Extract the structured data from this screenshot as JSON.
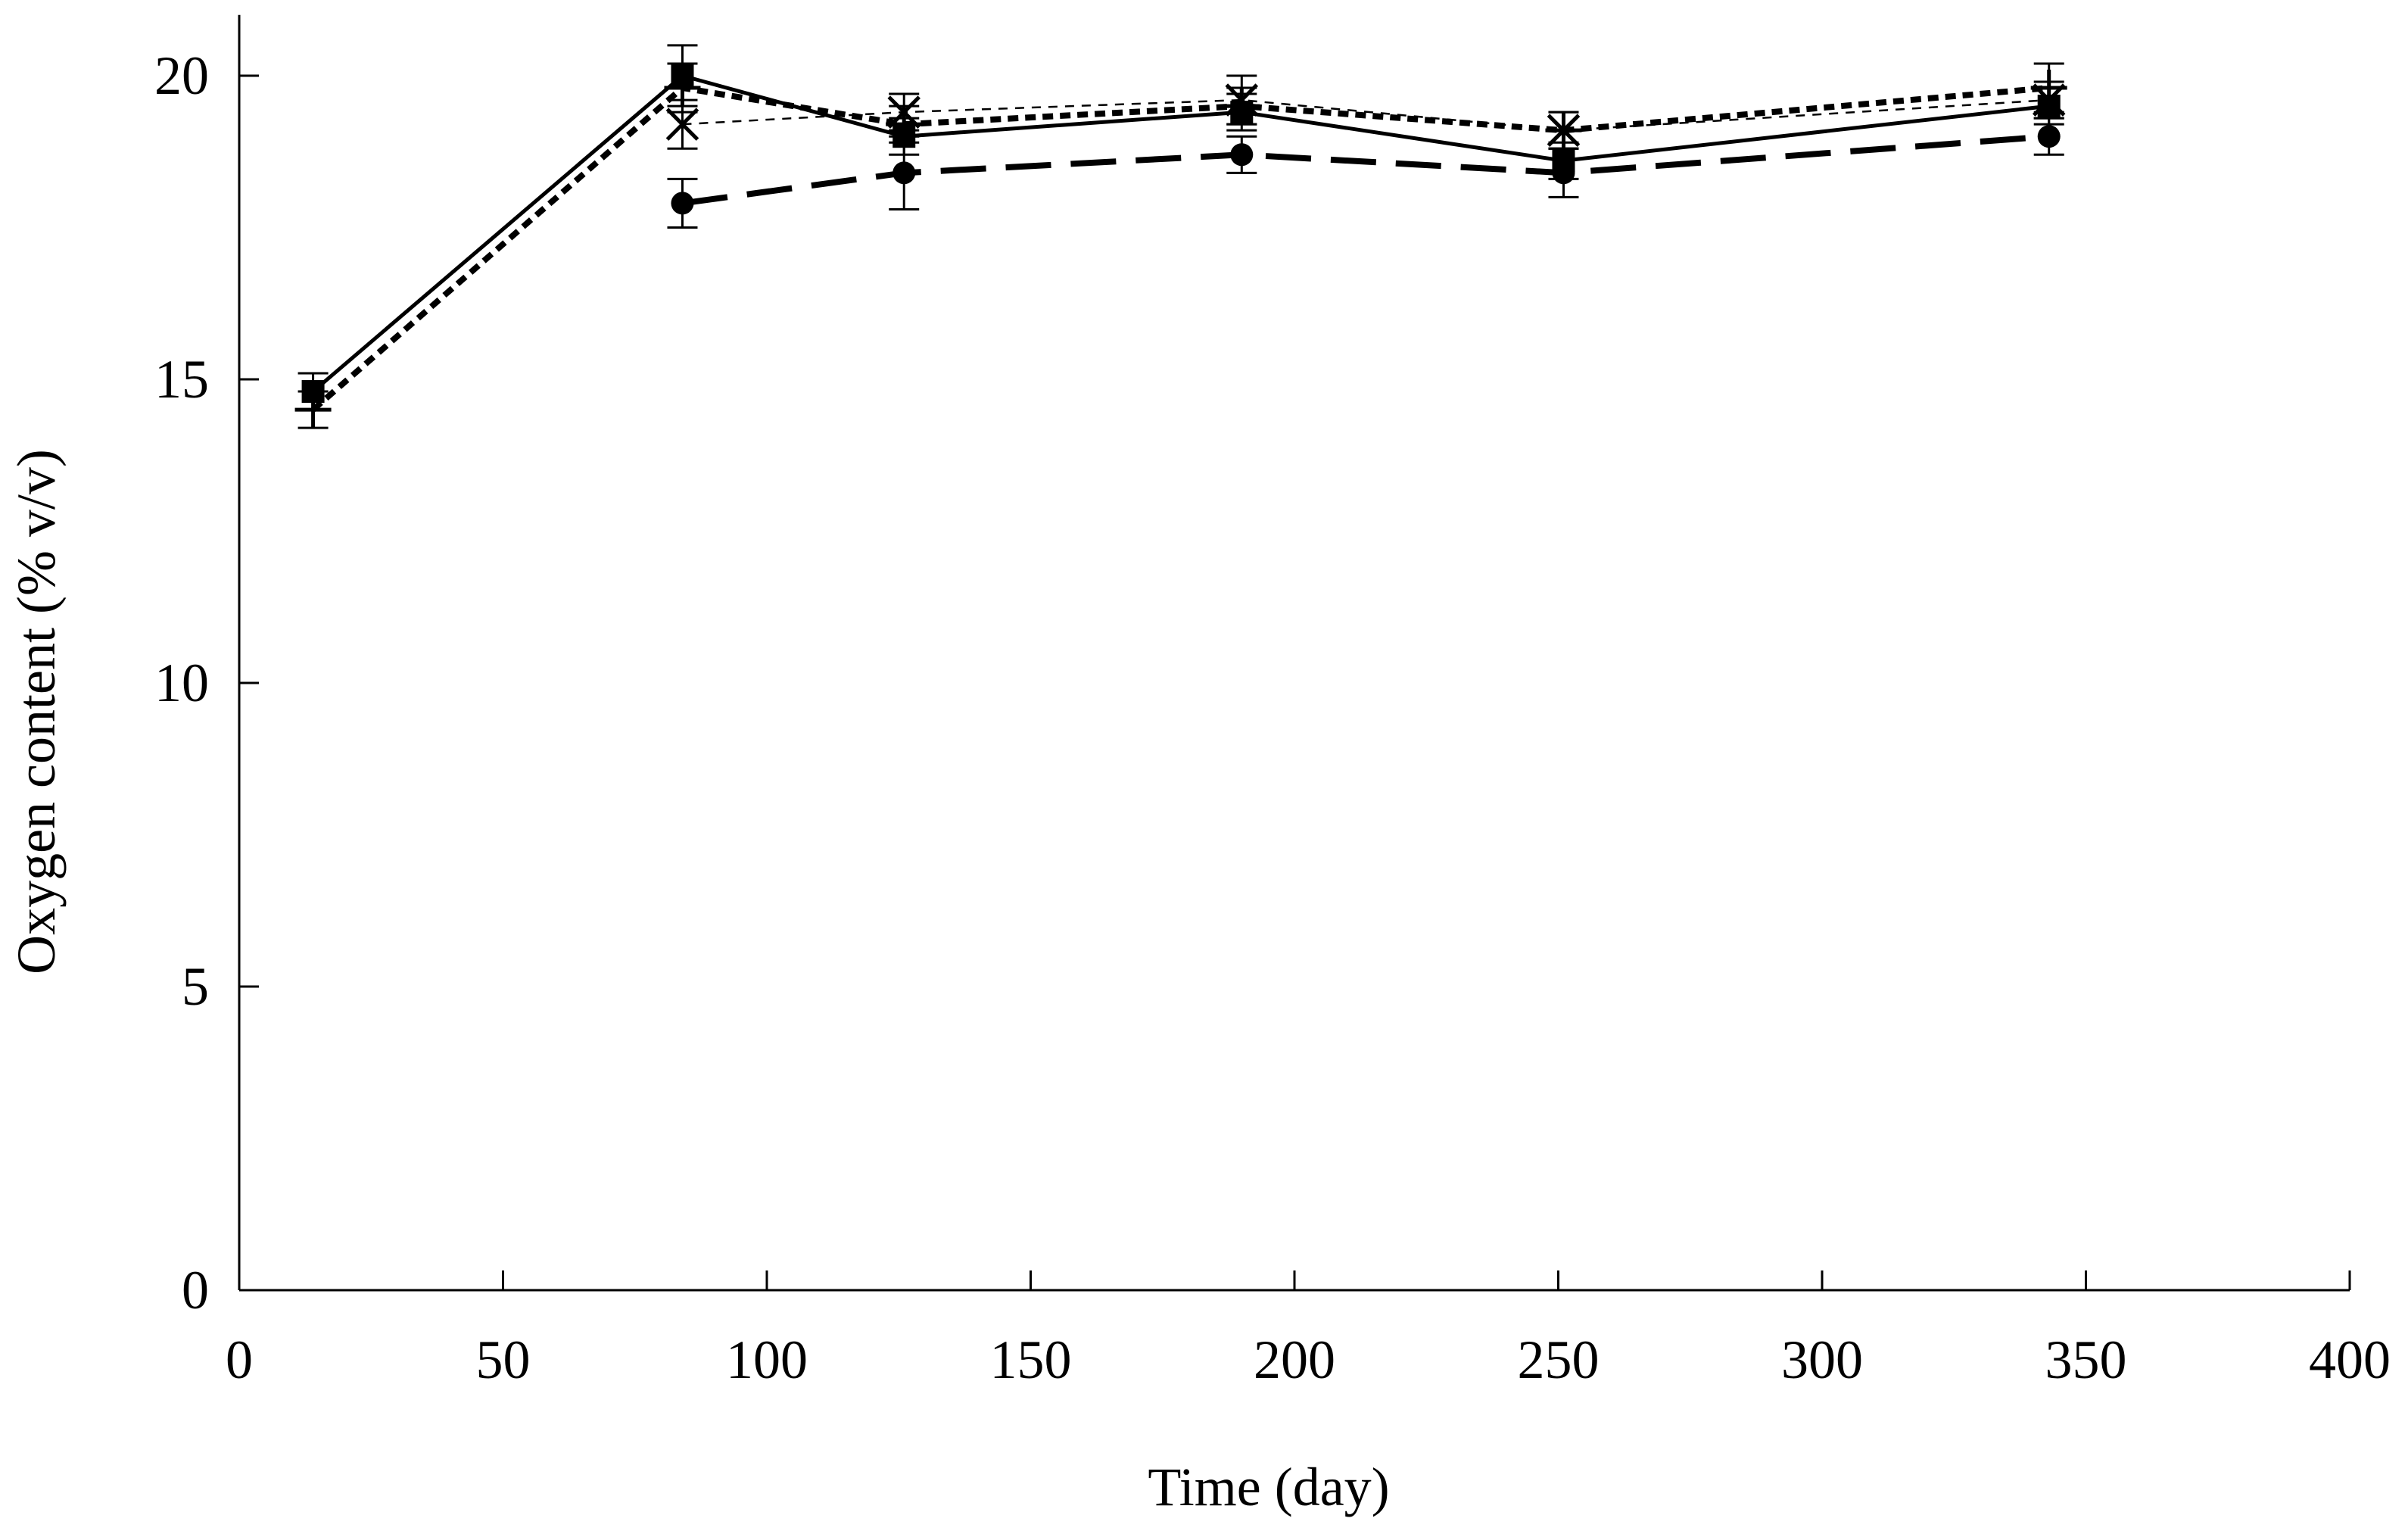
{
  "chart_data": {
    "type": "line",
    "title": "",
    "xlabel": "Time (day)",
    "ylabel": "Oxygen content (% v/v)",
    "xlim": [
      0,
      400
    ],
    "ylim": [
      0,
      21
    ],
    "xticks": [
      0,
      50,
      100,
      150,
      200,
      250,
      300,
      350,
      400
    ],
    "yticks": [
      0,
      5,
      10,
      15,
      20
    ],
    "grid": false,
    "series": [
      {
        "name": "square-solid",
        "marker": "square",
        "line": "solid",
        "x": [
          14,
          84,
          126,
          190,
          251,
          343
        ],
        "y": [
          14.8,
          20.0,
          19.0,
          19.4,
          18.6,
          19.5
        ],
        "err": [
          0.3,
          0.5,
          0.3,
          0.3,
          0.3,
          0.3
        ]
      },
      {
        "name": "plus-dotted",
        "marker": "plus",
        "line": "dotted-thick",
        "x": [
          14,
          84,
          126,
          190,
          251,
          343
        ],
        "y": [
          14.5,
          19.8,
          19.2,
          19.5,
          19.1,
          19.8
        ],
        "err": [
          0.3,
          0.4,
          0.3,
          0.3,
          0.3,
          0.4
        ]
      },
      {
        "name": "x-thin-dashed",
        "marker": "x",
        "line": "dashed-thin",
        "x": [
          84,
          126,
          190,
          251,
          343
        ],
        "y": [
          19.2,
          19.4,
          19.6,
          19.1,
          19.6
        ],
        "err": [
          0.4,
          0.3,
          0.4,
          0.3,
          0.3
        ]
      },
      {
        "name": "circle-long-dashed",
        "marker": "circle",
        "line": "long-dashed",
        "x": [
          84,
          126,
          190,
          251,
          343
        ],
        "y": [
          17.9,
          18.4,
          18.7,
          18.4,
          19.0
        ],
        "err": [
          0.4,
          0.6,
          0.3,
          0.4,
          0.3
        ]
      }
    ]
  }
}
